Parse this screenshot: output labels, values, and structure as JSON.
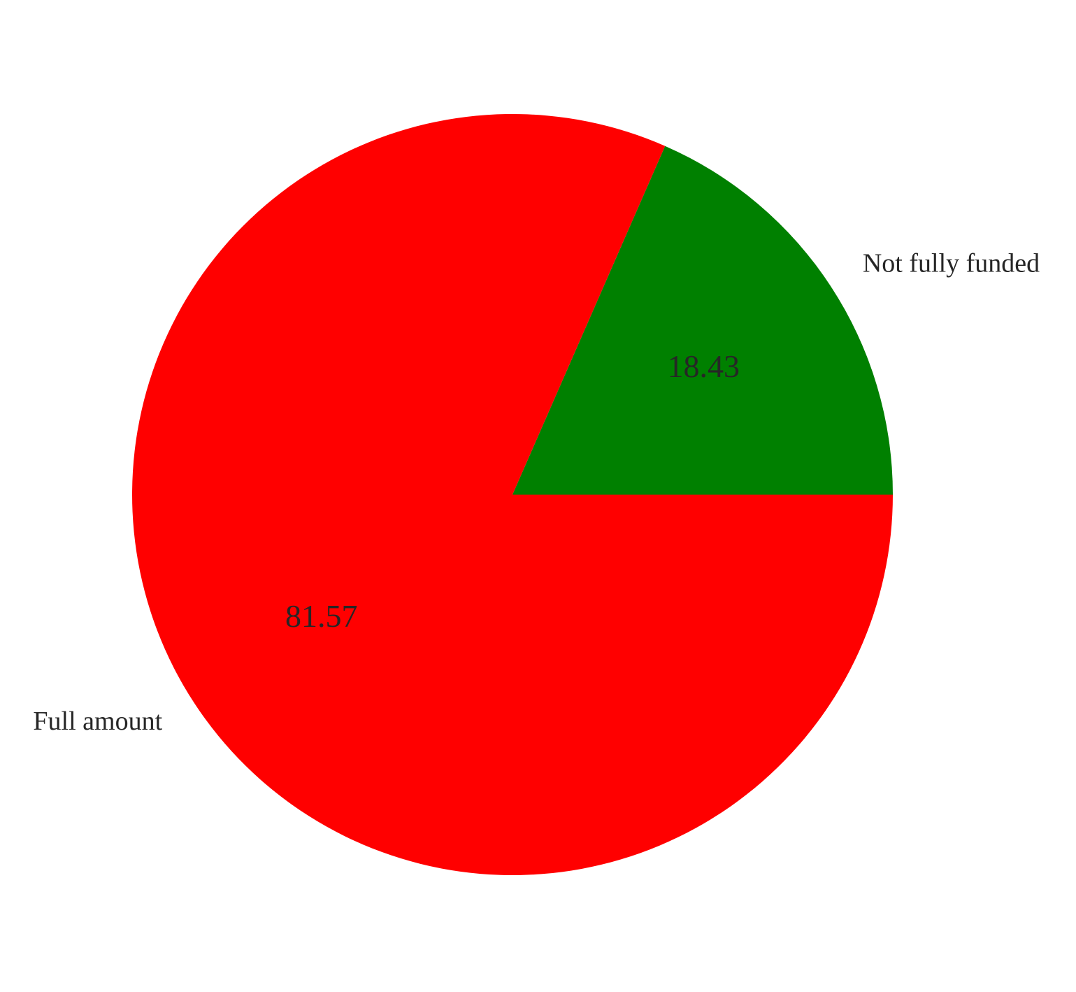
{
  "chart_data": {
    "type": "pie",
    "title": "",
    "labels": [
      "Full amount",
      "Not fully funded"
    ],
    "values": [
      81.57,
      18.43
    ],
    "value_labels": [
      "81.57",
      "18.43"
    ],
    "colors": [
      "#ff0000",
      "#008000"
    ],
    "start_angle_deg": 0,
    "direction": "counterclockwise",
    "legend": "none"
  }
}
